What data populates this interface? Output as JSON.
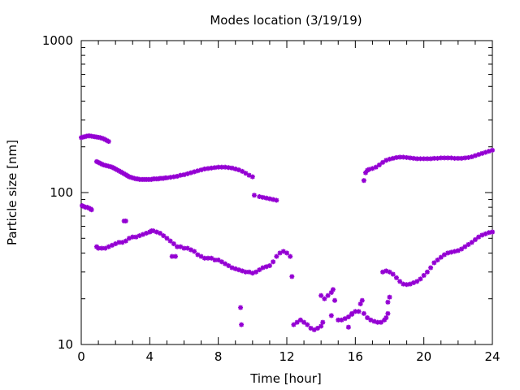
{
  "chart_data": {
    "type": "scatter",
    "title": "Modes location (3/19/19)",
    "xlabel": "Time [hour]",
    "ylabel": "Particle size [nm]",
    "xlim": [
      0,
      24
    ],
    "ylim": [
      10,
      1000
    ],
    "yscale": "log",
    "grid": false,
    "legend": "none",
    "marker_color": "#9400d3",
    "x_ticks": [
      0,
      4,
      8,
      12,
      16,
      20,
      24
    ],
    "x_tick_labels": [
      "0",
      "4",
      "8",
      "12",
      "16",
      "20",
      "24"
    ],
    "y_ticks": [
      10,
      100,
      1000
    ],
    "y_tick_labels": [
      "10",
      "100",
      "1000"
    ],
    "series": [
      {
        "points": [
          [
            0.0,
            230
          ],
          [
            0.1,
            232
          ],
          [
            0.2,
            233
          ],
          [
            0.3,
            235
          ],
          [
            0.4,
            236
          ],
          [
            0.5,
            236
          ],
          [
            0.6,
            235
          ],
          [
            0.7,
            234
          ],
          [
            0.8,
            233
          ],
          [
            0.9,
            232
          ],
          [
            1.0,
            231
          ],
          [
            1.1,
            230
          ],
          [
            1.2,
            228
          ],
          [
            1.3,
            226
          ],
          [
            1.4,
            223
          ],
          [
            1.5,
            220
          ],
          [
            1.6,
            217
          ],
          [
            0.05,
            82
          ],
          [
            0.15,
            81
          ],
          [
            0.25,
            80
          ],
          [
            0.35,
            80
          ],
          [
            0.45,
            79
          ],
          [
            0.55,
            78
          ],
          [
            0.6,
            77
          ],
          [
            0.9,
            160
          ],
          [
            1.0,
            158
          ],
          [
            1.1,
            156
          ],
          [
            1.2,
            154
          ],
          [
            1.3,
            152
          ],
          [
            1.4,
            151
          ],
          [
            1.5,
            150
          ],
          [
            1.6,
            149
          ],
          [
            1.7,
            148
          ],
          [
            1.8,
            147
          ],
          [
            1.9,
            145
          ],
          [
            2.0,
            143
          ],
          [
            2.1,
            141
          ],
          [
            2.2,
            139
          ],
          [
            2.3,
            137
          ],
          [
            2.4,
            135
          ],
          [
            2.5,
            133
          ],
          [
            2.6,
            131
          ],
          [
            2.7,
            129
          ],
          [
            2.8,
            127
          ],
          [
            2.9,
            126
          ],
          [
            3.0,
            125
          ],
          [
            3.1,
            124
          ],
          [
            3.2,
            123
          ],
          [
            3.3,
            123
          ],
          [
            3.4,
            122
          ],
          [
            3.5,
            122
          ],
          [
            3.6,
            122
          ],
          [
            3.7,
            122
          ],
          [
            3.8,
            122
          ],
          [
            3.9,
            122
          ],
          [
            4.0,
            122
          ],
          [
            4.1,
            122
          ],
          [
            4.2,
            123
          ],
          [
            4.3,
            123
          ],
          [
            4.4,
            123
          ],
          [
            4.5,
            123
          ],
          [
            4.6,
            124
          ],
          [
            4.7,
            124
          ],
          [
            4.8,
            124
          ],
          [
            4.9,
            125
          ],
          [
            5.0,
            125
          ],
          [
            5.2,
            126
          ],
          [
            5.4,
            127
          ],
          [
            5.6,
            128
          ],
          [
            5.8,
            130
          ],
          [
            6.0,
            131
          ],
          [
            6.2,
            133
          ],
          [
            6.4,
            135
          ],
          [
            6.6,
            137
          ],
          [
            6.8,
            139
          ],
          [
            7.0,
            141
          ],
          [
            7.2,
            143
          ],
          [
            7.4,
            144
          ],
          [
            7.6,
            145
          ],
          [
            7.8,
            146
          ],
          [
            8.0,
            147
          ],
          [
            8.2,
            147
          ],
          [
            8.4,
            147
          ],
          [
            8.6,
            146
          ],
          [
            8.8,
            145
          ],
          [
            9.0,
            143
          ],
          [
            9.2,
            141
          ],
          [
            9.4,
            138
          ],
          [
            9.6,
            134
          ],
          [
            9.8,
            130
          ],
          [
            10.0,
            127
          ],
          [
            0.9,
            44
          ],
          [
            1.0,
            43
          ],
          [
            1.2,
            43
          ],
          [
            1.4,
            43
          ],
          [
            1.6,
            44
          ],
          [
            1.8,
            45
          ],
          [
            2.0,
            46
          ],
          [
            2.2,
            47
          ],
          [
            2.4,
            47
          ],
          [
            2.6,
            48
          ],
          [
            2.8,
            50
          ],
          [
            3.0,
            51
          ],
          [
            3.2,
            51
          ],
          [
            3.4,
            52
          ],
          [
            3.6,
            53
          ],
          [
            3.8,
            54
          ],
          [
            4.0,
            55
          ],
          [
            4.1,
            56
          ],
          [
            4.2,
            56
          ],
          [
            4.4,
            55
          ],
          [
            4.6,
            54
          ],
          [
            4.8,
            52
          ],
          [
            5.0,
            50
          ],
          [
            5.2,
            48
          ],
          [
            5.4,
            46
          ],
          [
            5.3,
            38
          ],
          [
            5.5,
            38
          ],
          [
            2.5,
            65
          ],
          [
            2.6,
            65
          ],
          [
            5.6,
            44
          ],
          [
            5.8,
            44
          ],
          [
            6.0,
            43
          ],
          [
            6.2,
            43
          ],
          [
            6.4,
            42
          ],
          [
            6.6,
            41
          ],
          [
            6.8,
            39
          ],
          [
            7.0,
            38
          ],
          [
            7.2,
            37
          ],
          [
            7.4,
            37
          ],
          [
            7.6,
            37
          ],
          [
            7.8,
            36
          ],
          [
            8.0,
            36
          ],
          [
            8.2,
            35
          ],
          [
            8.4,
            34
          ],
          [
            8.6,
            33
          ],
          [
            8.8,
            32
          ],
          [
            9.0,
            31.5
          ],
          [
            9.2,
            31
          ],
          [
            9.4,
            30.5
          ],
          [
            9.6,
            30
          ],
          [
            9.8,
            30
          ],
          [
            10.0,
            29.5
          ],
          [
            10.2,
            30
          ],
          [
            10.4,
            31
          ],
          [
            10.6,
            32
          ],
          [
            10.8,
            32.5
          ],
          [
            11.0,
            33
          ],
          [
            11.2,
            35
          ],
          [
            11.4,
            38
          ],
          [
            11.6,
            40
          ],
          [
            11.8,
            41
          ],
          [
            12.0,
            40
          ],
          [
            12.2,
            38
          ],
          [
            10.1,
            96
          ],
          [
            10.4,
            94
          ],
          [
            10.6,
            93
          ],
          [
            10.8,
            92
          ],
          [
            11.0,
            91
          ],
          [
            11.2,
            90
          ],
          [
            11.4,
            89
          ],
          [
            9.3,
            17.5
          ],
          [
            9.35,
            13.5
          ],
          [
            12.3,
            28
          ],
          [
            12.4,
            13.5
          ],
          [
            12.6,
            14
          ],
          [
            12.8,
            14.5
          ],
          [
            13.0,
            14
          ],
          [
            13.2,
            13.5
          ],
          [
            13.4,
            12.8
          ],
          [
            13.6,
            12.5
          ],
          [
            13.8,
            12.8
          ],
          [
            14.0,
            13.2
          ],
          [
            14.1,
            14
          ],
          [
            14.0,
            21
          ],
          [
            14.2,
            20
          ],
          [
            14.4,
            21
          ],
          [
            14.6,
            22
          ],
          [
            14.7,
            23
          ],
          [
            14.6,
            15.5
          ],
          [
            14.8,
            19.5
          ],
          [
            15.0,
            14.5
          ],
          [
            15.2,
            14.5
          ],
          [
            15.4,
            14.8
          ],
          [
            15.6,
            15.2
          ],
          [
            15.8,
            15.8
          ],
          [
            16.0,
            16.5
          ],
          [
            15.6,
            13
          ],
          [
            15.8,
            16
          ],
          [
            16.2,
            16.5
          ],
          [
            16.3,
            18.5
          ],
          [
            16.4,
            19.5
          ],
          [
            16.5,
            16
          ],
          [
            16.7,
            15
          ],
          [
            16.9,
            14.5
          ],
          [
            17.1,
            14.2
          ],
          [
            17.3,
            14
          ],
          [
            17.5,
            14
          ],
          [
            17.7,
            14.5
          ],
          [
            17.8,
            15
          ],
          [
            17.9,
            16
          ],
          [
            17.9,
            19
          ],
          [
            18.0,
            20.5
          ],
          [
            16.5,
            120
          ],
          [
            16.6,
            135
          ],
          [
            16.7,
            140
          ],
          [
            16.8,
            142
          ],
          [
            17.0,
            144
          ],
          [
            17.2,
            147
          ],
          [
            17.4,
            152
          ],
          [
            17.6,
            158
          ],
          [
            17.8,
            163
          ],
          [
            18.0,
            166
          ],
          [
            18.2,
            168
          ],
          [
            18.4,
            170
          ],
          [
            18.6,
            171
          ],
          [
            18.8,
            171
          ],
          [
            19.0,
            170
          ],
          [
            19.2,
            169
          ],
          [
            19.4,
            168
          ],
          [
            19.6,
            167
          ],
          [
            19.8,
            167
          ],
          [
            20.0,
            167
          ],
          [
            20.2,
            167
          ],
          [
            20.4,
            167
          ],
          [
            20.6,
            168
          ],
          [
            20.8,
            168
          ],
          [
            21.0,
            169
          ],
          [
            21.2,
            169
          ],
          [
            21.4,
            169
          ],
          [
            21.6,
            169
          ],
          [
            21.8,
            168
          ],
          [
            22.0,
            168
          ],
          [
            22.2,
            168
          ],
          [
            22.4,
            169
          ],
          [
            22.6,
            170
          ],
          [
            22.8,
            172
          ],
          [
            23.0,
            175
          ],
          [
            23.2,
            178
          ],
          [
            23.4,
            181
          ],
          [
            23.6,
            184
          ],
          [
            23.8,
            187
          ],
          [
            24.0,
            190
          ],
          [
            17.6,
            30
          ],
          [
            17.8,
            30.5
          ],
          [
            18.0,
            30
          ],
          [
            18.2,
            29
          ],
          [
            18.4,
            27.5
          ],
          [
            18.6,
            26
          ],
          [
            18.8,
            25
          ],
          [
            19.0,
            24.8
          ],
          [
            19.2,
            25
          ],
          [
            19.4,
            25.5
          ],
          [
            19.6,
            26
          ],
          [
            19.8,
            27
          ],
          [
            20.0,
            28.5
          ],
          [
            20.2,
            30
          ],
          [
            20.4,
            32
          ],
          [
            20.6,
            34.5
          ],
          [
            20.8,
            36
          ],
          [
            21.0,
            37.5
          ],
          [
            21.2,
            39
          ],
          [
            21.4,
            40
          ],
          [
            21.6,
            40.5
          ],
          [
            21.8,
            41
          ],
          [
            22.0,
            41.5
          ],
          [
            22.2,
            42.5
          ],
          [
            22.4,
            44
          ],
          [
            22.6,
            45.5
          ],
          [
            22.8,
            47
          ],
          [
            23.0,
            49
          ],
          [
            23.2,
            51
          ],
          [
            23.4,
            52.5
          ],
          [
            23.6,
            53.5
          ],
          [
            23.8,
            54.5
          ],
          [
            24.0,
            55
          ]
        ]
      }
    ]
  }
}
